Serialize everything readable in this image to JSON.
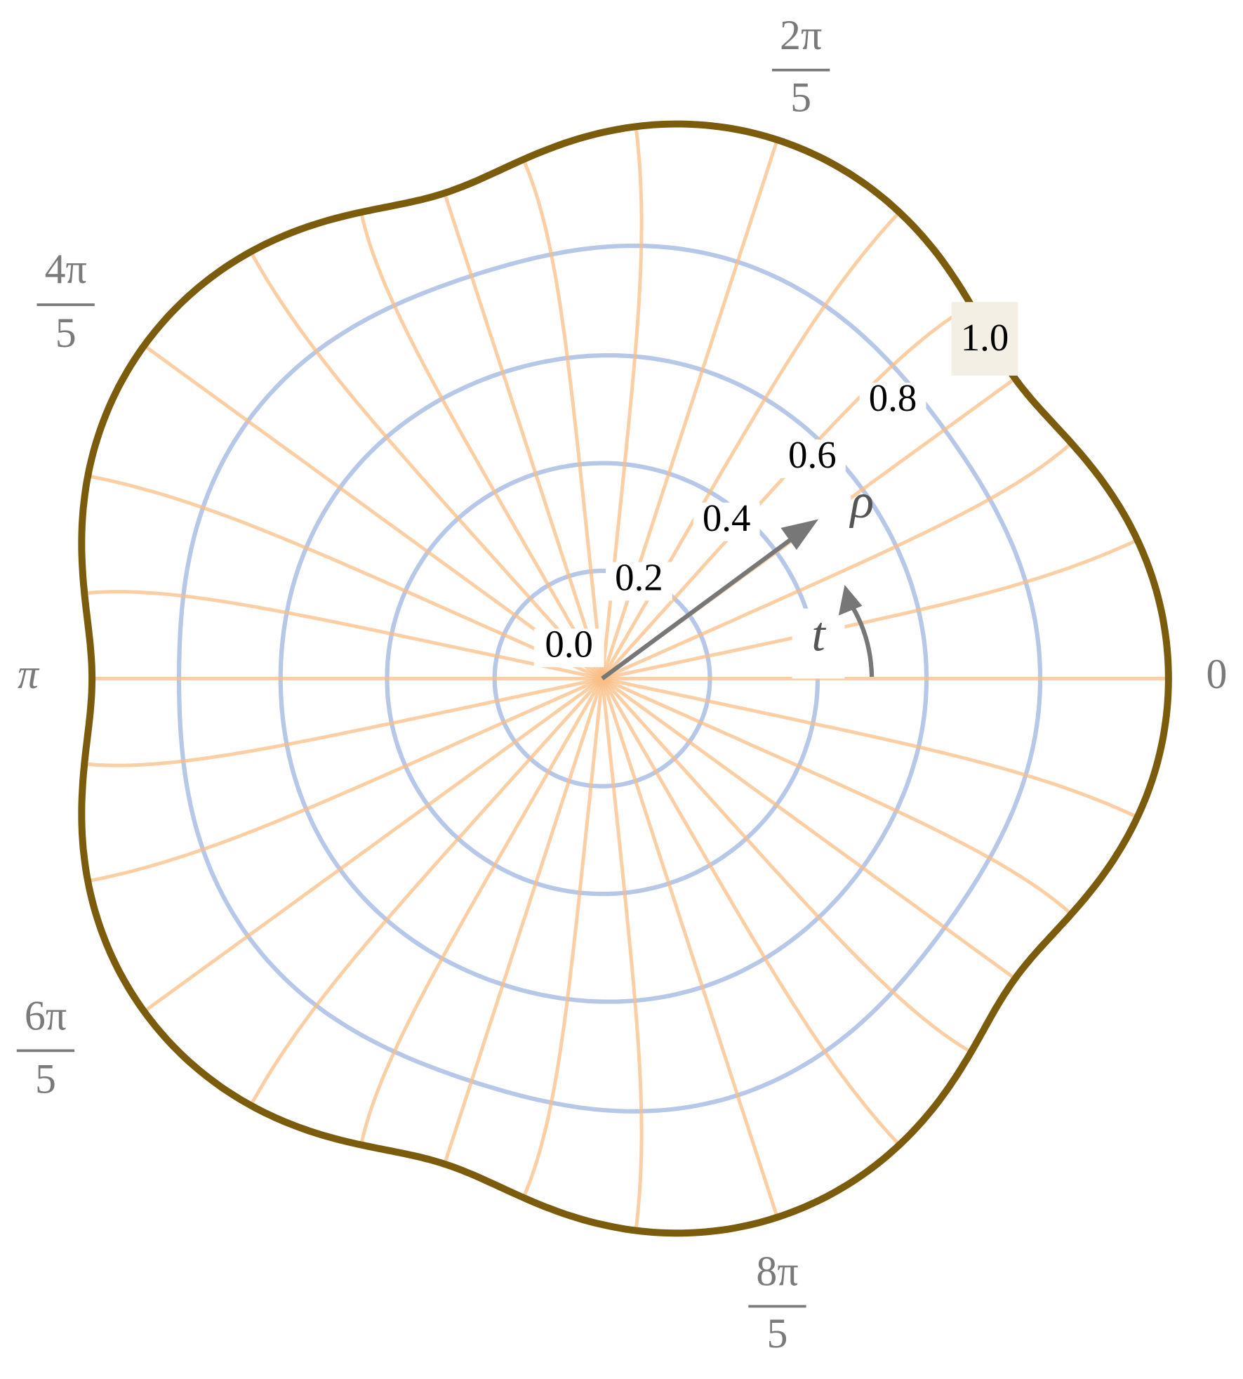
{
  "angle_labels": {
    "zero": "0",
    "pi": "π",
    "two_pi_fifths": {
      "numerator": "2π",
      "denominator": "5"
    },
    "four_pi_fifths": {
      "numerator": "4π",
      "denominator": "5"
    },
    "six_pi_fifths": {
      "numerator": "6π",
      "denominator": "5"
    },
    "eight_pi_fifths": {
      "numerator": "8π",
      "denominator": "5"
    }
  },
  "radial_labels": [
    "0.0",
    "0.2",
    "0.4",
    "0.6",
    "0.8",
    "1.0"
  ],
  "symbols": {
    "rho": "ρ",
    "t": "t"
  }
}
